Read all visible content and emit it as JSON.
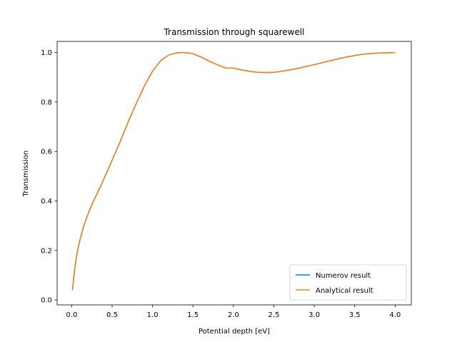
{
  "chart_data": {
    "type": "line",
    "title": "Transmission through squarewell",
    "xlabel": "Potential depth [eV]",
    "ylabel": "Transmission",
    "xlim": [
      -0.18,
      4.2
    ],
    "ylim": [
      -0.02,
      1.045
    ],
    "xticks": [
      "0.0",
      "0.5",
      "1.0",
      "1.5",
      "2.0",
      "2.5",
      "3.0",
      "3.5",
      "4.0"
    ],
    "yticks": [
      "0.0",
      "0.2",
      "0.4",
      "0.6",
      "0.8",
      "1.0"
    ],
    "grid": false,
    "legend_position": "lower-right",
    "series": [
      {
        "name": "Numerov result",
        "color": "#1f77b4",
        "x": [
          0.01,
          0.02,
          0.04,
          0.06,
          0.08,
          0.1,
          0.15,
          0.2,
          0.25,
          0.3,
          0.4,
          0.5,
          0.6,
          0.7,
          0.8,
          0.9,
          1.0,
          1.1,
          1.2,
          1.3,
          1.38,
          1.45,
          1.5,
          1.6,
          1.7,
          1.8,
          1.9,
          2.0,
          2.1,
          2.2,
          2.3,
          2.4,
          2.5,
          2.6,
          2.7,
          2.8,
          2.9,
          3.0,
          3.1,
          3.2,
          3.3,
          3.4,
          3.5,
          3.6,
          3.7,
          3.8,
          3.9,
          4.0
        ],
        "y": [
          0.04,
          0.075,
          0.13,
          0.175,
          0.21,
          0.24,
          0.3,
          0.345,
          0.385,
          0.42,
          0.49,
          0.565,
          0.64,
          0.72,
          0.795,
          0.865,
          0.925,
          0.967,
          0.99,
          0.999,
          1.0,
          0.998,
          0.995,
          0.982,
          0.965,
          0.951,
          0.938,
          0.937,
          0.93,
          0.924,
          0.92,
          0.919,
          0.92,
          0.924,
          0.93,
          0.936,
          0.944,
          0.951,
          0.959,
          0.967,
          0.975,
          0.982,
          0.988,
          0.993,
          0.996,
          0.998,
          0.999,
          1.0
        ]
      },
      {
        "name": "Analytical result",
        "color": "#ff7f0e",
        "x": [
          0.01,
          0.02,
          0.04,
          0.06,
          0.08,
          0.1,
          0.15,
          0.2,
          0.25,
          0.3,
          0.4,
          0.5,
          0.6,
          0.7,
          0.8,
          0.9,
          1.0,
          1.1,
          1.2,
          1.3,
          1.38,
          1.45,
          1.5,
          1.6,
          1.7,
          1.8,
          1.9,
          2.0,
          2.1,
          2.2,
          2.3,
          2.4,
          2.5,
          2.6,
          2.7,
          2.8,
          2.9,
          3.0,
          3.1,
          3.2,
          3.3,
          3.4,
          3.5,
          3.6,
          3.7,
          3.8,
          3.9,
          4.0
        ],
        "y": [
          0.04,
          0.075,
          0.13,
          0.175,
          0.21,
          0.24,
          0.3,
          0.345,
          0.385,
          0.42,
          0.49,
          0.565,
          0.64,
          0.72,
          0.795,
          0.865,
          0.925,
          0.967,
          0.99,
          0.999,
          1.0,
          0.998,
          0.995,
          0.982,
          0.965,
          0.951,
          0.938,
          0.937,
          0.93,
          0.924,
          0.92,
          0.919,
          0.92,
          0.924,
          0.93,
          0.936,
          0.944,
          0.951,
          0.959,
          0.967,
          0.975,
          0.982,
          0.988,
          0.993,
          0.996,
          0.998,
          0.999,
          1.0
        ]
      }
    ]
  }
}
